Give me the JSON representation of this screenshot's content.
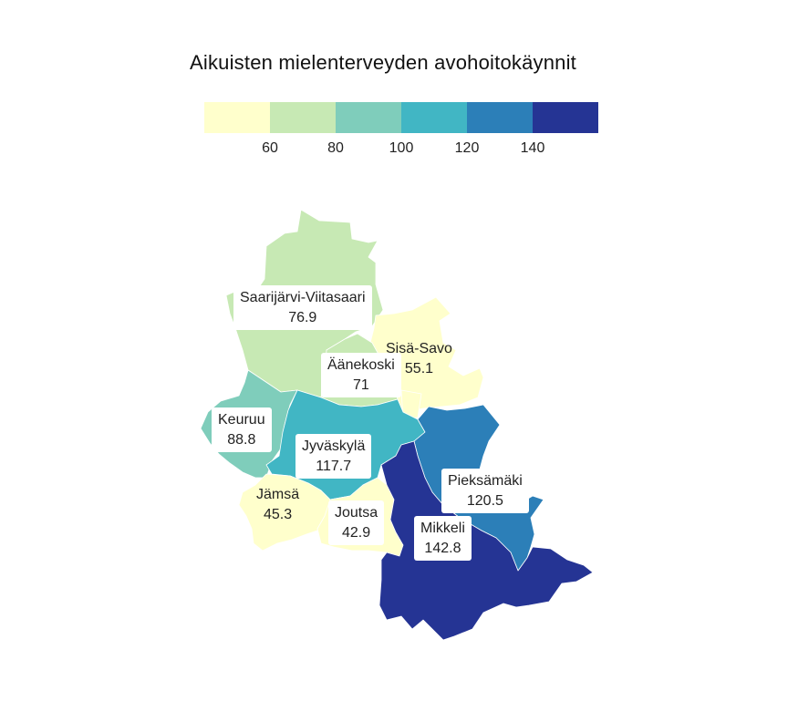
{
  "title": "Aikuisten mielenterveyden avohoitokäynnit",
  "legend": {
    "colors": [
      "#ffffcc",
      "#c7e9b4",
      "#7fcdbb",
      "#41b6c4",
      "#2c7fb8",
      "#253494"
    ],
    "ticks": [
      "60",
      "80",
      "100",
      "120",
      "140"
    ]
  },
  "regions": [
    {
      "name": "Saarijärvi-Viitasaari",
      "value": "76.9",
      "color": "#c7e9b4"
    },
    {
      "name": "Sisä-Savo",
      "value": "55.1",
      "color": "#ffffcc"
    },
    {
      "name": "Äänekoski",
      "value": "71",
      "color": "#c7e9b4"
    },
    {
      "name": "Keuruu",
      "value": "88.8",
      "color": "#7fcdbb"
    },
    {
      "name": "Jyväskylä",
      "value": "117.7",
      "color": "#41b6c4"
    },
    {
      "name": "Jämsä",
      "value": "45.3",
      "color": "#ffffcc"
    },
    {
      "name": "Joutsa",
      "value": "42.9",
      "color": "#ffffcc"
    },
    {
      "name": "Pieksämäki",
      "value": "120.5",
      "color": "#2c7fb8"
    },
    {
      "name": "Mikkeli",
      "value": "142.8",
      "color": "#253494"
    }
  ]
}
